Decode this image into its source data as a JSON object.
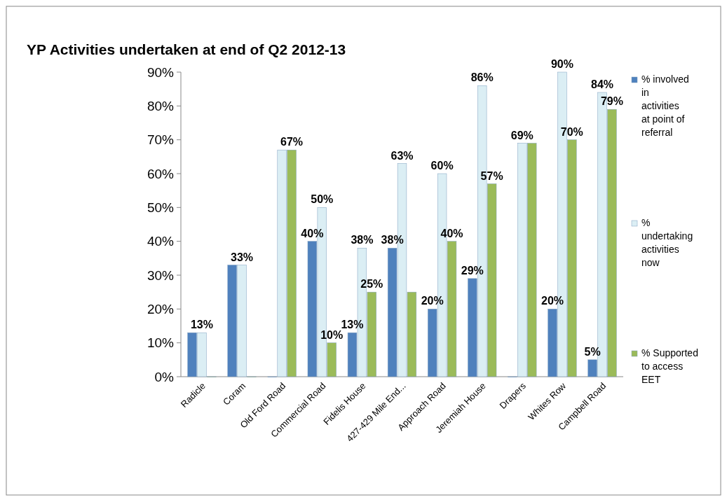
{
  "chart_data": {
    "type": "bar",
    "title": "YP Activities undertaken at end of Q2 2012-13",
    "categories": [
      "Radicle",
      "Coram",
      "Old Ford Road",
      "Commercial Road",
      "Fidelis House",
      "427-429 Mile End...",
      "Approach Road",
      "Jeremiah House",
      "Drapers",
      "Whites Row",
      "Campbell Road"
    ],
    "series": [
      {
        "name": "% involved in activities at point of referral",
        "color": "#4f81bd",
        "values": [
          13,
          33,
          0,
          40,
          13,
          38,
          20,
          29,
          0,
          20,
          5
        ],
        "value_labels": [
          null,
          null,
          null,
          "40%",
          "13%",
          "38%",
          "20%",
          "29%",
          null,
          "20%",
          "5%"
        ]
      },
      {
        "name": "% undertaking activities now",
        "color": "#dbeef4",
        "values": [
          13,
          33,
          67,
          50,
          38,
          63,
          60,
          86,
          69,
          90,
          84
        ],
        "value_labels": [
          "13%",
          "33%",
          null,
          "50%",
          "38%",
          "63%",
          "60%",
          "86%",
          "69%",
          "90%",
          "84%"
        ]
      },
      {
        "name": "% Supported to access EET",
        "color": "#9bbb59",
        "values": [
          0,
          0,
          67,
          10,
          25,
          25,
          40,
          57,
          69,
          70,
          79
        ],
        "value_labels": [
          null,
          null,
          "67%",
          "10%",
          "25%",
          null,
          "40%",
          "57%",
          null,
          "70%",
          "79%"
        ]
      }
    ],
    "ylim": [
      0,
      90
    ],
    "yticks": [
      {
        "value": 0,
        "label": "0%"
      },
      {
        "value": 10,
        "label": "10%"
      },
      {
        "value": 20,
        "label": "20%"
      },
      {
        "value": 30,
        "label": "30%"
      },
      {
        "value": 40,
        "label": "40%"
      },
      {
        "value": 50,
        "label": "50%"
      },
      {
        "value": 60,
        "label": "60%"
      },
      {
        "value": 70,
        "label": "70%"
      },
      {
        "value": 80,
        "label": "80%"
      },
      {
        "value": 90,
        "label": "90%"
      }
    ],
    "legend": "right"
  }
}
